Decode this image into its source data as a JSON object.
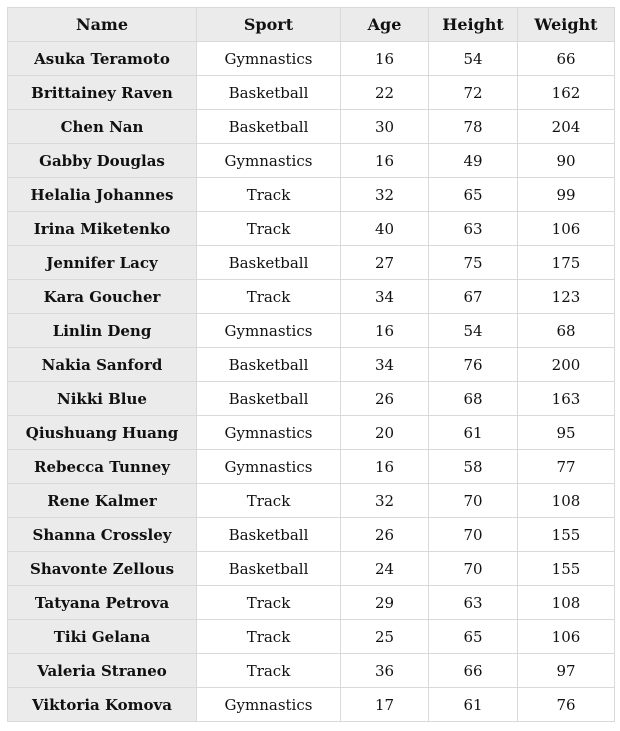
{
  "table": {
    "headers": [
      "Name",
      "Sport",
      "Age",
      "Height",
      "Weight"
    ],
    "rows": [
      [
        "Asuka Teramoto",
        "Gymnastics",
        "16",
        "54",
        "66"
      ],
      [
        "Brittainey Raven",
        "Basketball",
        "22",
        "72",
        "162"
      ],
      [
        "Chen Nan",
        "Basketball",
        "30",
        "78",
        "204"
      ],
      [
        "Gabby Douglas",
        "Gymnastics",
        "16",
        "49",
        "90"
      ],
      [
        "Helalia Johannes",
        "Track",
        "32",
        "65",
        "99"
      ],
      [
        "Irina Miketenko",
        "Track",
        "40",
        "63",
        "106"
      ],
      [
        "Jennifer Lacy",
        "Basketball",
        "27",
        "75",
        "175"
      ],
      [
        "Kara Goucher",
        "Track",
        "34",
        "67",
        "123"
      ],
      [
        "Linlin Deng",
        "Gymnastics",
        "16",
        "54",
        "68"
      ],
      [
        "Nakia Sanford",
        "Basketball",
        "34",
        "76",
        "200"
      ],
      [
        "Nikki Blue",
        "Basketball",
        "26",
        "68",
        "163"
      ],
      [
        "Qiushuang Huang",
        "Gymnastics",
        "20",
        "61",
        "95"
      ],
      [
        "Rebecca Tunney",
        "Gymnastics",
        "16",
        "58",
        "77"
      ],
      [
        "Rene Kalmer",
        "Track",
        "32",
        "70",
        "108"
      ],
      [
        "Shanna Crossley",
        "Basketball",
        "26",
        "70",
        "155"
      ],
      [
        "Shavonte Zellous",
        "Basketball",
        "24",
        "70",
        "155"
      ],
      [
        "Tatyana Petrova",
        "Track",
        "29",
        "63",
        "108"
      ],
      [
        "Tiki Gelana",
        "Track",
        "25",
        "65",
        "106"
      ],
      [
        "Valeria Straneo",
        "Track",
        "36",
        "66",
        "97"
      ],
      [
        "Viktoria Komova",
        "Gymnastics",
        "17",
        "61",
        "76"
      ]
    ]
  },
  "colors": {
    "header_bg": "#ebebeb",
    "border": "#d9d9d9"
  }
}
